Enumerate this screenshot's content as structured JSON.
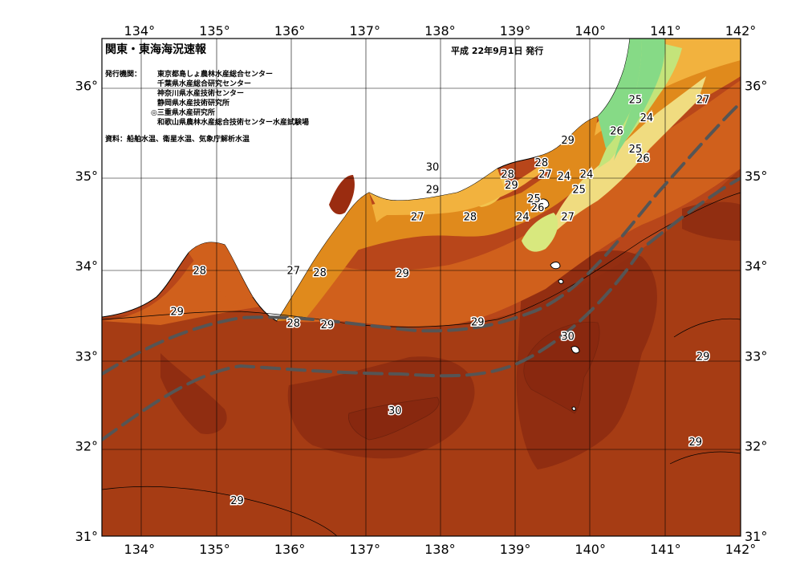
{
  "title": "関東・東海海況速報",
  "issue_date": "平成 22年9月1日 発行",
  "publisher_label": "発行機関：",
  "publishers": [
    "東京都島しょ農林水産総合センター",
    "千葉県水産総合研究センター",
    "神奈川県水産技術センター",
    "静岡県水産技術研究所",
    "◎三重県水産研究所",
    "和歌山県農林水産総合技術センター水産試験場"
  ],
  "source_note": "資料：船舶水温、衛星水温、気象庁解析水温",
  "axes": {
    "lon_labels": [
      "134°",
      "135°",
      "136°",
      "137°",
      "138°",
      "139°",
      "140°",
      "141°",
      "142°"
    ],
    "lat_labels": [
      "36°",
      "35°",
      "34°",
      "33°",
      "32°",
      "31°"
    ]
  },
  "temperature_labels": [
    {
      "text": "30",
      "lon": 137.9,
      "lat": 35.1
    },
    {
      "text": "29",
      "lon": 137.9,
      "lat": 34.85
    },
    {
      "text": "27",
      "lon": 137.7,
      "lat": 34.55
    },
    {
      "text": "28",
      "lon": 134.8,
      "lat": 33.95
    },
    {
      "text": "27",
      "lon": 136.05,
      "lat": 33.95
    },
    {
      "text": "28",
      "lon": 136.4,
      "lat": 33.93
    },
    {
      "text": "29",
      "lon": 137.5,
      "lat": 33.92
    },
    {
      "text": "29",
      "lon": 134.5,
      "lat": 33.5
    },
    {
      "text": "28",
      "lon": 136.05,
      "lat": 33.37
    },
    {
      "text": "29",
      "lon": 136.5,
      "lat": 33.35
    },
    {
      "text": "29",
      "lon": 138.5,
      "lat": 33.38
    },
    {
      "text": "28",
      "lon": 138.4,
      "lat": 34.55
    },
    {
      "text": "28",
      "lon": 138.9,
      "lat": 35.02
    },
    {
      "text": "29",
      "lon": 138.95,
      "lat": 34.9
    },
    {
      "text": "25",
      "lon": 139.25,
      "lat": 34.75
    },
    {
      "text": "28",
      "lon": 139.35,
      "lat": 35.15
    },
    {
      "text": "27",
      "lon": 139.4,
      "lat": 35.02
    },
    {
      "text": "29",
      "lon": 139.7,
      "lat": 35.4
    },
    {
      "text": "24",
      "lon": 139.65,
      "lat": 35.0
    },
    {
      "text": "24",
      "lon": 139.95,
      "lat": 35.02
    },
    {
      "text": "25",
      "lon": 139.85,
      "lat": 34.85
    },
    {
      "text": "26",
      "lon": 140.35,
      "lat": 35.5
    },
    {
      "text": "25",
      "lon": 140.6,
      "lat": 35.3
    },
    {
      "text": "26",
      "lon": 140.7,
      "lat": 35.2
    },
    {
      "text": "25",
      "lon": 140.6,
      "lat": 35.85
    },
    {
      "text": "24",
      "lon": 140.75,
      "lat": 35.65
    },
    {
      "text": "27",
      "lon": 141.5,
      "lat": 35.85
    },
    {
      "text": "26",
      "lon": 139.3,
      "lat": 34.65
    },
    {
      "text": "24",
      "lon": 139.1,
      "lat": 34.55
    },
    {
      "text": "27",
      "lon": 139.7,
      "lat": 34.55
    },
    {
      "text": "30",
      "lon": 139.7,
      "lat": 33.22
    },
    {
      "text": "29",
      "lon": 141.5,
      "lat": 33.0
    },
    {
      "text": "30",
      "lon": 137.4,
      "lat": 32.4
    },
    {
      "text": "29",
      "lon": 141.4,
      "lat": 32.05
    },
    {
      "text": "29",
      "lon": 135.3,
      "lat": 31.4
    }
  ],
  "colors": {
    "ocean_warm": "#c0501c",
    "ocean_29": "#a83e14",
    "ocean_30": "#7a1e0c",
    "ocean_28": "#d4661c",
    "ocean_27": "#e8901c",
    "ocean_26": "#f4c04a",
    "ocean_25": "#f0e08a",
    "ocean_24": "#c8e878",
    "ocean_23": "#88dc88",
    "land": "#ffffff",
    "kuroshio_line": "#555555"
  }
}
